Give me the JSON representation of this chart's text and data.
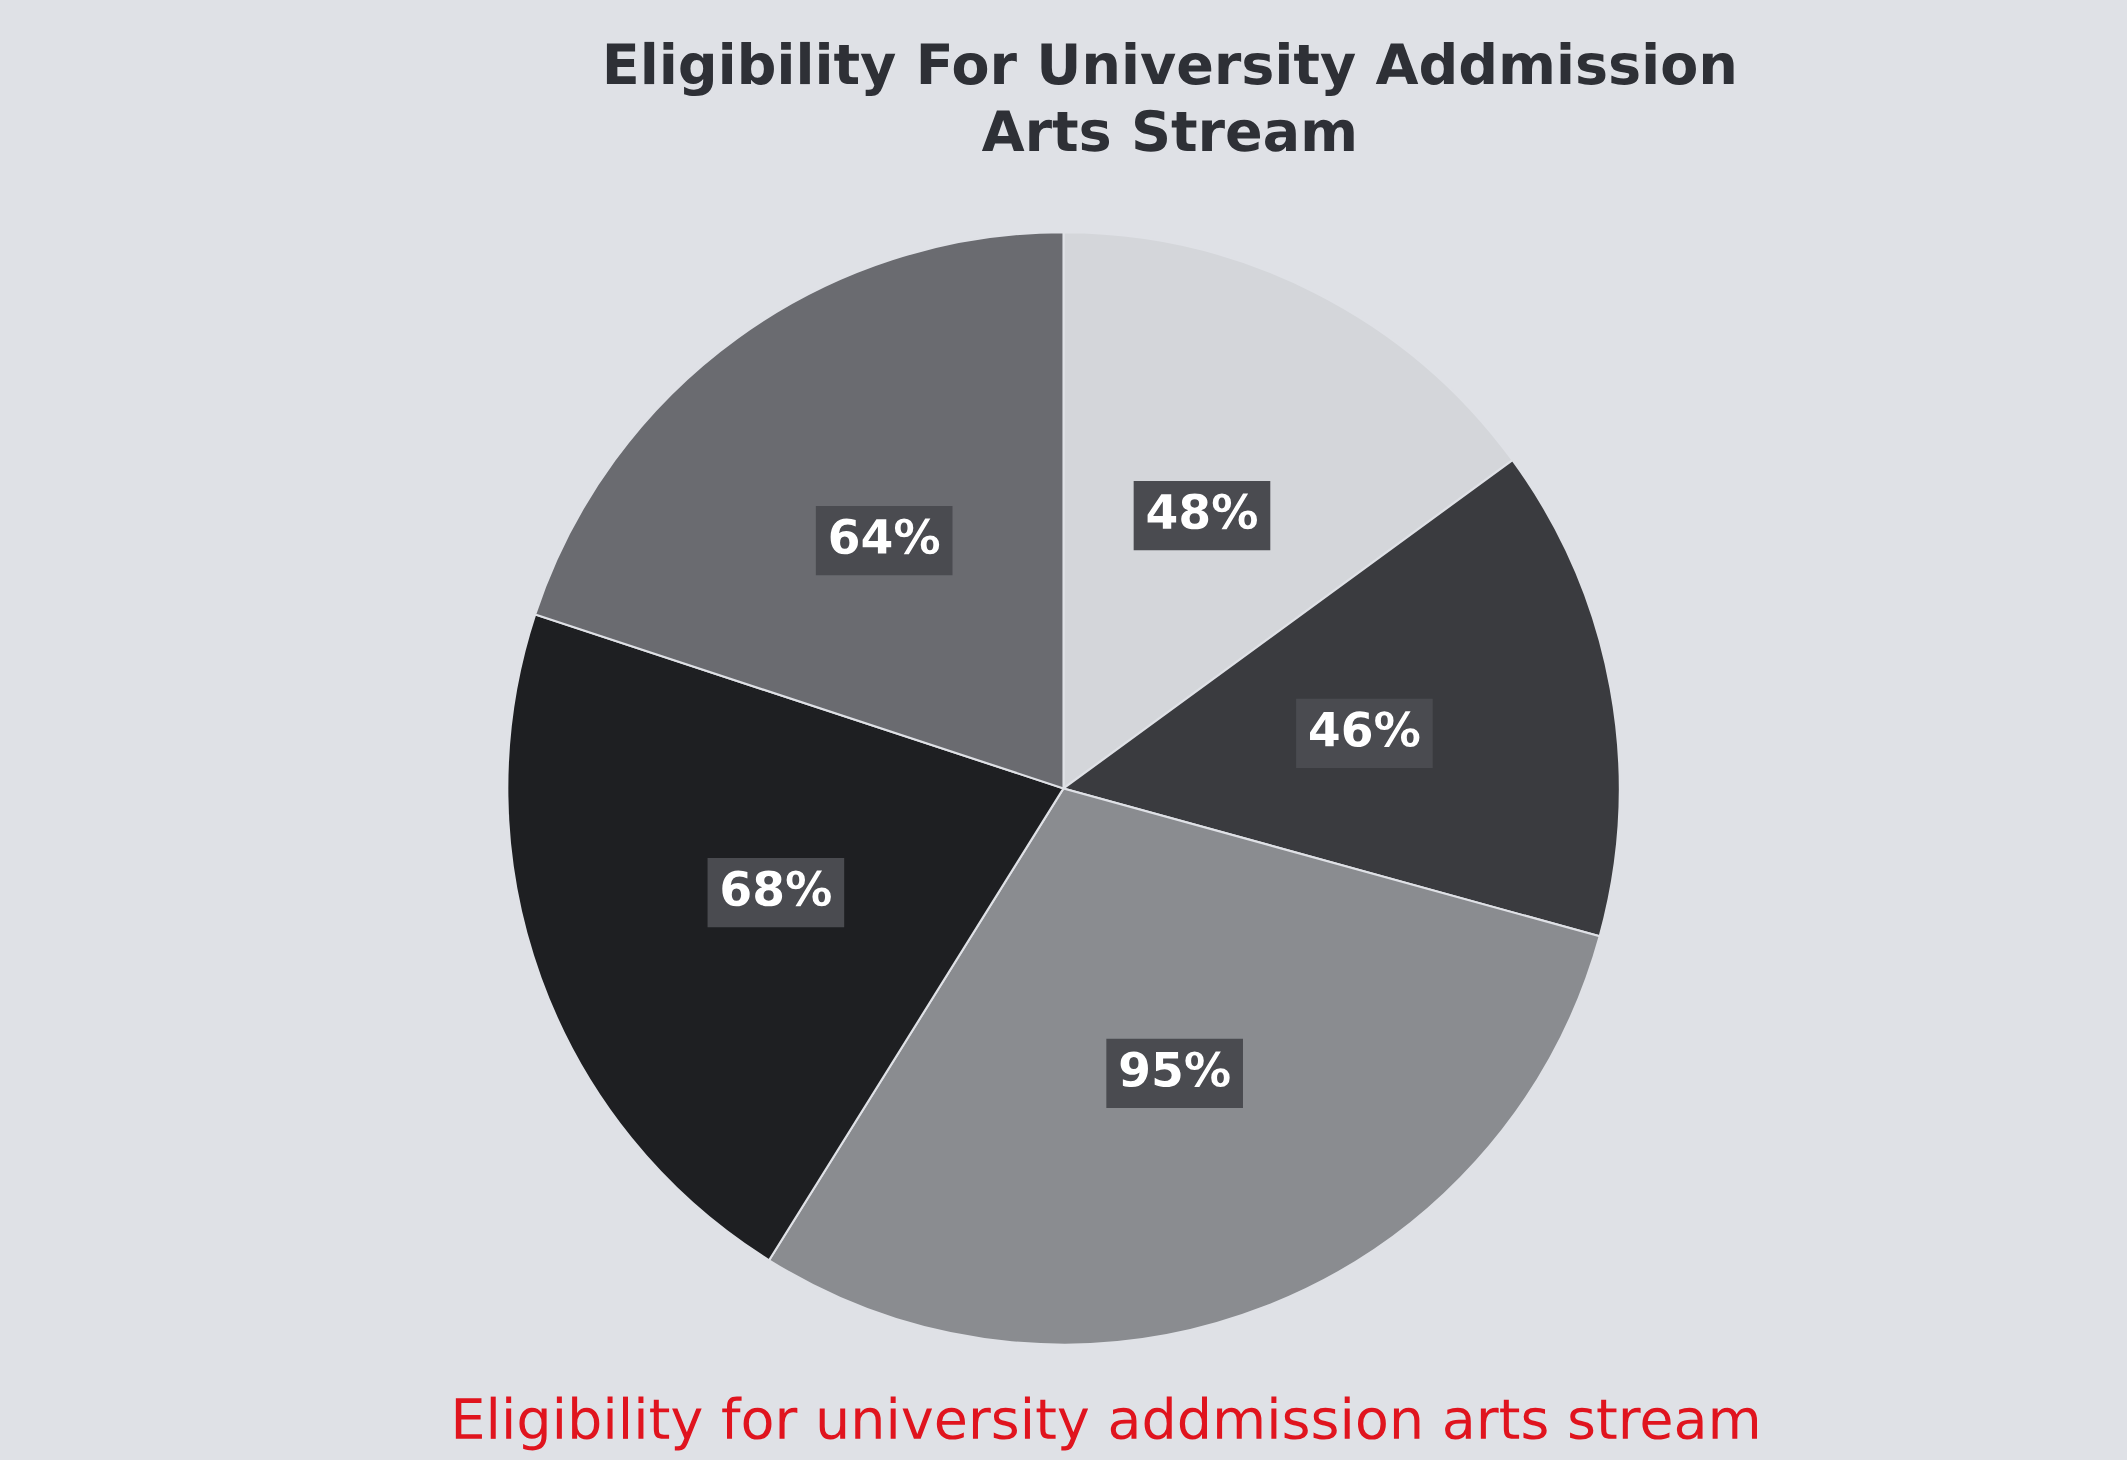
{
  "chart_data": {
    "type": "pie",
    "title": "Eligibility For University Addmission\nArts Stream",
    "categories": [
      null,
      null,
      null,
      null,
      null
    ],
    "values": [
      48,
      46,
      95,
      68,
      64
    ],
    "value_labels": [
      "48%",
      "46%",
      "95%",
      "68%",
      "64%"
    ],
    "colors": [
      "#d4d6da",
      "#3a3b3f",
      "#8a8c90",
      "#1e1f22",
      "#6a6b70"
    ],
    "legend": false,
    "annotations": [
      "Eligibility for university addmission arts stream"
    ]
  }
}
